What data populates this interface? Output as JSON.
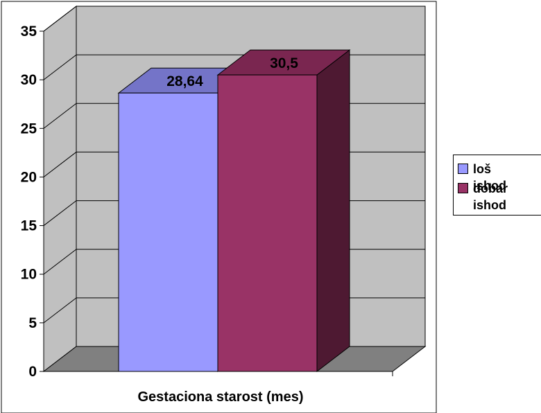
{
  "chart_data": {
    "type": "bar",
    "style": "3d-clustered",
    "xlabel": "Gestaciona starost (mes)",
    "ylabel": "",
    "ylim": [
      0,
      35
    ],
    "yticks": [
      0,
      5,
      10,
      15,
      20,
      25,
      30,
      35
    ],
    "yticks_text": [
      "0",
      "5",
      "10",
      "15",
      "20",
      "25",
      "30",
      "35"
    ],
    "grid": true,
    "legend_position": "right",
    "series": [
      {
        "name": "loš ishod",
        "value": 28.64,
        "label": "28,64",
        "color": "#9999FF",
        "side_color": "#5A5AB4",
        "top_color": "#7474C8"
      },
      {
        "name": "dobar ishod",
        "value": 30.5,
        "label": "30,5",
        "color": "#993366",
        "side_color": "#4E1932",
        "top_color": "#7A2650"
      }
    ]
  },
  "colors": {
    "wall": "#C0C0C0",
    "floor": "#808080",
    "gridline": "#000000"
  }
}
